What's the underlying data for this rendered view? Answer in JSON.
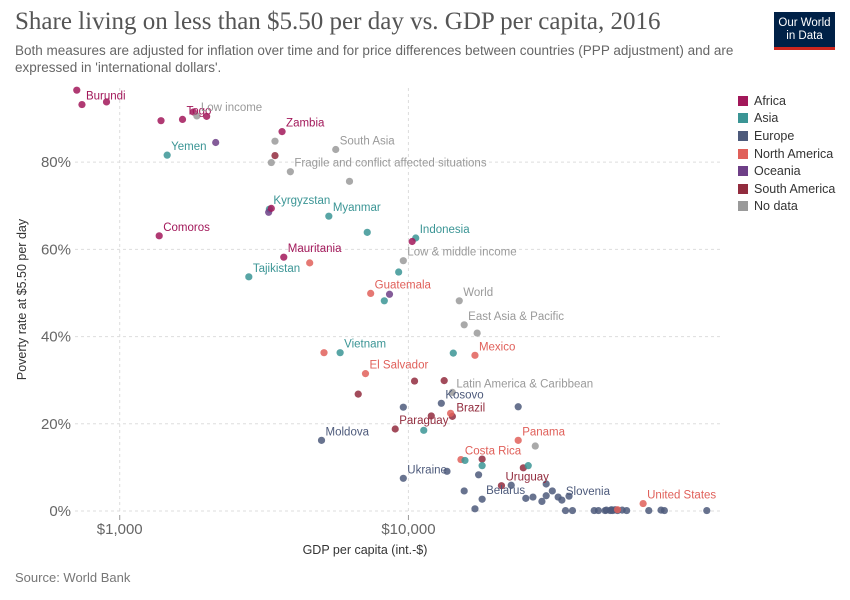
{
  "header": {
    "title": "Share living on less than $5.50 per day vs. GDP per capita, 2016",
    "subtitle": "Both measures are adjusted for inflation over time and for price differences between countries (PPP adjustment) and are expressed in 'international dollars'.",
    "logo_line1": "Our World",
    "logo_line2": "in Data"
  },
  "footer": {
    "source": "Source: World Bank"
  },
  "colors": {
    "Africa": "#a2185a",
    "Asia": "#3b9595",
    "Europe": "#4d5a7b",
    "North America": "#e0605a",
    "Oceania": "#6e3f87",
    "South America": "#922c3e",
    "No data": "#9a9a9a",
    "grid": "#dddddd",
    "axis_text": "#666666"
  },
  "legend": [
    "Africa",
    "Asia",
    "Europe",
    "North America",
    "Oceania",
    "South America",
    "No data"
  ],
  "chart_data": {
    "type": "scatter",
    "title": "Share living on less than $5.50 per day vs. GDP per capita, 2016",
    "xlabel": "GDP per capita (int.-$)",
    "ylabel": "Poverty rate at $5.50 per day",
    "x_scale": "log",
    "xlim": [
      700,
      120000
    ],
    "ylim": [
      0,
      97
    ],
    "x_ticks": [
      {
        "value": 1000,
        "label": "$1,000"
      },
      {
        "value": 10000,
        "label": "$10,000"
      }
    ],
    "y_ticks": [
      {
        "value": 0,
        "label": "0%"
      },
      {
        "value": 20,
        "label": "20%"
      },
      {
        "value": 40,
        "label": "40%"
      },
      {
        "value": 60,
        "label": "60%"
      },
      {
        "value": 80,
        "label": "80%"
      }
    ],
    "grid": true,
    "legend_position": "right",
    "points": [
      {
        "x": 710,
        "y": 96.5,
        "group": "Africa"
      },
      {
        "x": 740,
        "y": 93.2,
        "group": "Africa",
        "label": "Burundi"
      },
      {
        "x": 900,
        "y": 93.8,
        "group": "Africa"
      },
      {
        "x": 1390,
        "y": 89.5,
        "group": "Africa"
      },
      {
        "x": 1650,
        "y": 89.8,
        "group": "Africa",
        "label": "Togo"
      },
      {
        "x": 1800,
        "y": 91.5,
        "group": "Africa"
      },
      {
        "x": 2000,
        "y": 90.5,
        "group": "Africa"
      },
      {
        "x": 1850,
        "y": 90.6,
        "group": "No data",
        "label": "Low income"
      },
      {
        "x": 3650,
        "y": 87.0,
        "group": "Africa",
        "label": "Zambia"
      },
      {
        "x": 3450,
        "y": 84.8,
        "group": "No data"
      },
      {
        "x": 2150,
        "y": 84.5,
        "group": "Oceania"
      },
      {
        "x": 1460,
        "y": 81.6,
        "group": "Asia",
        "label": "Yemen"
      },
      {
        "x": 3450,
        "y": 81.5,
        "group": "South America"
      },
      {
        "x": 3350,
        "y": 79.9,
        "group": "No data"
      },
      {
        "x": 5600,
        "y": 82.9,
        "group": "No data",
        "label": "South Asia"
      },
      {
        "x": 3900,
        "y": 77.8,
        "group": "No data",
        "label": "Fragile and conflict affected situations"
      },
      {
        "x": 6250,
        "y": 75.6,
        "group": "No data"
      },
      {
        "x": 3300,
        "y": 69.2,
        "group": "Asia",
        "label": "Kyrgyzstan"
      },
      {
        "x": 3280,
        "y": 68.5,
        "group": "Oceania"
      },
      {
        "x": 3350,
        "y": 69.4,
        "group": "Africa"
      },
      {
        "x": 5300,
        "y": 67.6,
        "group": "Asia",
        "label": "Myanmar"
      },
      {
        "x": 7200,
        "y": 63.9,
        "group": "Asia"
      },
      {
        "x": 10600,
        "y": 62.6,
        "group": "Asia",
        "label": "Indonesia"
      },
      {
        "x": 10300,
        "y": 61.8,
        "group": "Africa"
      },
      {
        "x": 1370,
        "y": 63.1,
        "group": "Africa",
        "label": "Comoros"
      },
      {
        "x": 3700,
        "y": 58.2,
        "group": "Africa",
        "label": "Mauritania"
      },
      {
        "x": 4550,
        "y": 56.9,
        "group": "North America"
      },
      {
        "x": 9600,
        "y": 57.4,
        "group": "No data",
        "label": "Low & middle income"
      },
      {
        "x": 9250,
        "y": 54.8,
        "group": "Asia"
      },
      {
        "x": 2800,
        "y": 53.7,
        "group": "Asia",
        "label": "Tajikistan"
      },
      {
        "x": 7400,
        "y": 49.9,
        "group": "North America",
        "label": "Guatemala"
      },
      {
        "x": 8600,
        "y": 49.7,
        "group": "Oceania"
      },
      {
        "x": 8250,
        "y": 48.2,
        "group": "Asia"
      },
      {
        "x": 15000,
        "y": 48.2,
        "group": "No data",
        "label": "World"
      },
      {
        "x": 15600,
        "y": 42.7,
        "group": "No data",
        "label": "East Asia & Pacific"
      },
      {
        "x": 17300,
        "y": 40.8,
        "group": "No data"
      },
      {
        "x": 5100,
        "y": 36.3,
        "group": "North America"
      },
      {
        "x": 5800,
        "y": 36.3,
        "group": "Asia",
        "label": "Vietnam"
      },
      {
        "x": 14300,
        "y": 36.2,
        "group": "Asia"
      },
      {
        "x": 17000,
        "y": 35.7,
        "group": "North America",
        "label": "Mexico"
      },
      {
        "x": 7100,
        "y": 31.5,
        "group": "North America",
        "label": "El Salvador"
      },
      {
        "x": 10500,
        "y": 29.8,
        "group": "South America"
      },
      {
        "x": 13300,
        "y": 29.9,
        "group": "South America"
      },
      {
        "x": 14200,
        "y": 27.2,
        "group": "No data",
        "label": "Latin America & Caribbean"
      },
      {
        "x": 6700,
        "y": 26.8,
        "group": "South America"
      },
      {
        "x": 13000,
        "y": 24.7,
        "group": "Europe",
        "label": "Kosovo"
      },
      {
        "x": 9600,
        "y": 23.8,
        "group": "Europe"
      },
      {
        "x": 24000,
        "y": 23.9,
        "group": "Europe"
      },
      {
        "x": 12000,
        "y": 21.8,
        "group": "South America"
      },
      {
        "x": 14200,
        "y": 21.7,
        "group": "South America",
        "label": "Brazil"
      },
      {
        "x": 14000,
        "y": 22.4,
        "group": "North America"
      },
      {
        "x": 9000,
        "y": 18.8,
        "group": "South America",
        "label": "Paraguay"
      },
      {
        "x": 11300,
        "y": 18.5,
        "group": "Asia"
      },
      {
        "x": 5000,
        "y": 16.2,
        "group": "Europe",
        "label": "Moldova"
      },
      {
        "x": 24000,
        "y": 16.2,
        "group": "North America",
        "label": "Panama"
      },
      {
        "x": 27500,
        "y": 14.9,
        "group": "No data"
      },
      {
        "x": 15200,
        "y": 11.8,
        "group": "North America",
        "label": "Costa Rica"
      },
      {
        "x": 15700,
        "y": 11.6,
        "group": "Asia"
      },
      {
        "x": 18000,
        "y": 11.9,
        "group": "South America"
      },
      {
        "x": 18000,
        "y": 10.4,
        "group": "Asia"
      },
      {
        "x": 25000,
        "y": 9.9,
        "group": "South America"
      },
      {
        "x": 26000,
        "y": 10.4,
        "group": "Asia"
      },
      {
        "x": 13600,
        "y": 9.1,
        "group": "Europe"
      },
      {
        "x": 17500,
        "y": 8.3,
        "group": "Europe"
      },
      {
        "x": 9600,
        "y": 7.5,
        "group": "Europe",
        "label": "Ukraine"
      },
      {
        "x": 21000,
        "y": 5.8,
        "group": "South America",
        "label": "Uruguay"
      },
      {
        "x": 22700,
        "y": 5.9,
        "group": "Europe"
      },
      {
        "x": 15600,
        "y": 4.6,
        "group": "Europe"
      },
      {
        "x": 30000,
        "y": 6.2,
        "group": "Europe"
      },
      {
        "x": 27000,
        "y": 3.2,
        "group": "Europe"
      },
      {
        "x": 30000,
        "y": 3.5,
        "group": "Europe"
      },
      {
        "x": 31500,
        "y": 4.6,
        "group": "Europe"
      },
      {
        "x": 33000,
        "y": 3.2,
        "group": "Europe"
      },
      {
        "x": 36000,
        "y": 3.4,
        "group": "Europe"
      },
      {
        "x": 25500,
        "y": 2.9,
        "group": "Europe"
      },
      {
        "x": 18000,
        "y": 2.7,
        "group": "Europe",
        "label": "Belarus"
      },
      {
        "x": 34000,
        "y": 2.5,
        "group": "Europe",
        "label": "Slovenia"
      },
      {
        "x": 29000,
        "y": 2.2,
        "group": "Europe"
      },
      {
        "x": 35000,
        "y": 0.1,
        "group": "Europe"
      },
      {
        "x": 37000,
        "y": 0.1,
        "group": "Europe"
      },
      {
        "x": 44000,
        "y": 0.1,
        "group": "Europe"
      },
      {
        "x": 45500,
        "y": 0.1,
        "group": "Europe"
      },
      {
        "x": 48000,
        "y": 0.1,
        "group": "Europe"
      },
      {
        "x": 50000,
        "y": 0.1,
        "group": "Europe"
      },
      {
        "x": 52000,
        "y": 0.3,
        "group": "Europe"
      },
      {
        "x": 53000,
        "y": 0.1,
        "group": "Europe"
      },
      {
        "x": 55000,
        "y": 0.2,
        "group": "Europe"
      },
      {
        "x": 57000,
        "y": 0.1,
        "group": "Europe"
      },
      {
        "x": 68000,
        "y": 0.1,
        "group": "Europe"
      },
      {
        "x": 75000,
        "y": 0.2,
        "group": "Europe"
      },
      {
        "x": 77000,
        "y": 0.1,
        "group": "Europe"
      },
      {
        "x": 108000,
        "y": 0.1,
        "group": "Europe"
      },
      {
        "x": 17000,
        "y": 0.5,
        "group": "Europe"
      },
      {
        "x": 50500,
        "y": 0.3,
        "group": "Europe"
      },
      {
        "x": 48500,
        "y": 0.2,
        "group": "Europe"
      },
      {
        "x": 51000,
        "y": 0.1,
        "group": "Europe"
      },
      {
        "x": 53000,
        "y": 0.3,
        "group": "North America"
      },
      {
        "x": 65000,
        "y": 1.7,
        "group": "North America",
        "label": "United States"
      }
    ],
    "label_offsets_note": ""
  }
}
